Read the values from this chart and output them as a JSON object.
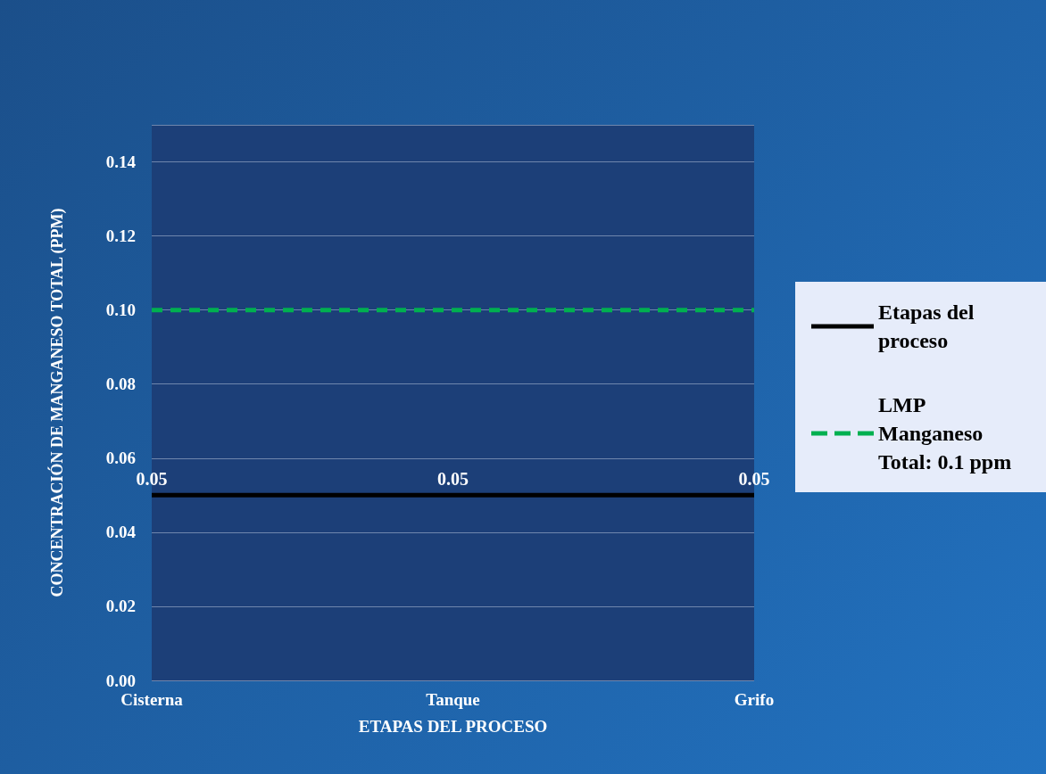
{
  "chart_data": {
    "type": "line",
    "xlabel": "ETAPAS DEL PROCESO",
    "ylabel": "CONCENTRACIÓN DE MANGANESO TOTAL (PPM)",
    "categories": [
      "Cisterna",
      "Tanque",
      "Grifo"
    ],
    "series": [
      {
        "name": "Etapas del proceso",
        "color": "#000000",
        "values": [
          0.05,
          0.05,
          0.05
        ],
        "value_labels": [
          "0.05",
          "0.05",
          "0.05"
        ],
        "line_style": "solid"
      },
      {
        "name": "LMP Manganeso Total: 0.1 ppm",
        "color": "#00b050",
        "values": [
          0.1,
          0.1,
          0.1
        ],
        "line_style": "dashed"
      }
    ],
    "ylim": [
      0,
      0.15
    ],
    "yticks": [
      {
        "value": 0,
        "label": "0.00"
      },
      {
        "value": 0.02,
        "label": "0.02"
      },
      {
        "value": 0.04,
        "label": "0.04"
      },
      {
        "value": 0.06,
        "label": "0.06"
      },
      {
        "value": 0.08,
        "label": "0.08"
      },
      {
        "value": 0.1,
        "label": "0.10"
      },
      {
        "value": 0.12,
        "label": "0.12"
      },
      {
        "value": 0.14,
        "label": "0.14"
      }
    ],
    "grid": "y",
    "legend": "right",
    "marker": "none"
  }
}
